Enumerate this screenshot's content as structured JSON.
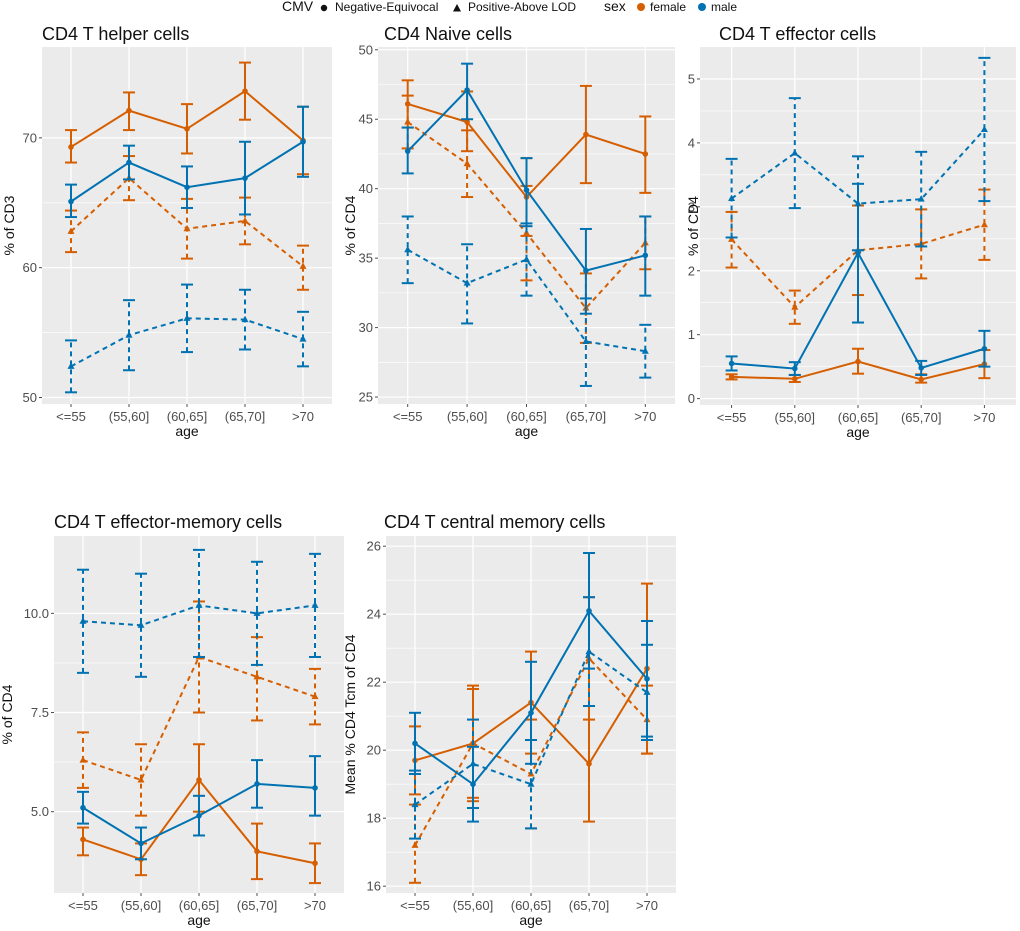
{
  "legend": {
    "cmv_title": "CMV",
    "cmv_items": [
      {
        "label": "Negative-Equivocal",
        "shape": "circle",
        "line": "solid"
      },
      {
        "label": "Positive-Above LOD",
        "shape": "triangle",
        "line": "dashed"
      }
    ],
    "sex_title": "sex",
    "sex_items": [
      {
        "label": "female",
        "color": "#D55E00"
      },
      {
        "label": "male",
        "color": "#0072B2"
      }
    ]
  },
  "chart_data": [
    {
      "type": "line",
      "title": "CD4 T helper cells",
      "xlabel": "age",
      "ylabel": "% of CD3",
      "categories": [
        "<=55",
        "(55,60]",
        "(60,65]",
        "(65,70]",
        ">70"
      ],
      "ylim": [
        49.5,
        77
      ],
      "yticks": [
        50,
        60,
        70
      ],
      "series": [
        {
          "name": "female Negative-Equivocal",
          "sex": "female",
          "cmv": "Negative-Equivocal",
          "values": [
            69.3,
            72.1,
            70.7,
            73.6,
            69.8
          ],
          "lower": [
            68.1,
            70.6,
            68.8,
            71.4,
            67.2
          ],
          "upper": [
            70.6,
            73.5,
            72.6,
            75.8,
            72.4
          ]
        },
        {
          "name": "female Positive-Above LOD",
          "sex": "female",
          "cmv": "Positive-Above LOD",
          "values": [
            62.8,
            66.9,
            63.0,
            63.6,
            60.1
          ],
          "lower": [
            61.2,
            65.2,
            60.7,
            61.8,
            58.3
          ],
          "upper": [
            64.4,
            68.6,
            65.3,
            65.4,
            61.7
          ]
        },
        {
          "name": "male Negative-Equivocal",
          "sex": "male",
          "cmv": "Negative-Equivocal",
          "values": [
            65.1,
            68.1,
            66.2,
            66.9,
            69.7
          ],
          "lower": [
            63.9,
            66.8,
            64.6,
            64.1,
            67.0
          ],
          "upper": [
            66.4,
            69.4,
            67.8,
            69.7,
            72.4
          ]
        },
        {
          "name": "male Positive-Above LOD",
          "sex": "male",
          "cmv": "Positive-Above LOD",
          "values": [
            52.4,
            54.8,
            56.1,
            56.0,
            54.5
          ],
          "lower": [
            50.4,
            52.1,
            53.5,
            53.7,
            52.4
          ],
          "upper": [
            54.4,
            57.5,
            58.7,
            58.3,
            56.6
          ]
        }
      ]
    },
    {
      "type": "line",
      "title": "CD4 Naive cells",
      "xlabel": "age",
      "ylabel": "% of CD4",
      "categories": [
        "<=55",
        "(55,60]",
        "(60,65]",
        "(65,70]",
        ">70"
      ],
      "ylim": [
        24.5,
        50.2
      ],
      "yticks": [
        25,
        30,
        35,
        40,
        45,
        50
      ],
      "series": [
        {
          "name": "female Negative-Equivocal",
          "sex": "female",
          "cmv": "Negative-Equivocal",
          "values": [
            46.1,
            44.8,
            39.4,
            43.9,
            42.5
          ],
          "lower": [
            44.4,
            42.7,
            36.6,
            40.4,
            39.7
          ],
          "upper": [
            47.8,
            47.0,
            42.2,
            47.4,
            45.2
          ]
        },
        {
          "name": "female Positive-Above LOD",
          "sex": "female",
          "cmv": "Positive-Above LOD",
          "values": [
            44.8,
            41.8,
            36.8,
            31.4,
            36.1
          ],
          "lower": [
            42.9,
            39.4,
            33.4,
            28.9,
            34.2
          ],
          "upper": [
            46.7,
            44.2,
            40.2,
            33.9,
            38.0
          ]
        },
        {
          "name": "male Negative-Equivocal",
          "sex": "male",
          "cmv": "Negative-Equivocal",
          "values": [
            42.7,
            47.1,
            39.9,
            34.1,
            35.2
          ],
          "lower": [
            41.1,
            45.0,
            37.3,
            31.0,
            32.3
          ],
          "upper": [
            44.4,
            49.0,
            42.2,
            37.1,
            38.0
          ]
        },
        {
          "name": "male Positive-Above LOD",
          "sex": "male",
          "cmv": "Positive-Above LOD",
          "values": [
            35.6,
            33.2,
            34.9,
            29.0,
            28.3
          ],
          "lower": [
            33.2,
            30.3,
            32.3,
            25.8,
            26.4
          ],
          "upper": [
            38.0,
            36.0,
            37.5,
            32.1,
            30.2
          ]
        }
      ]
    },
    {
      "type": "line",
      "title": "CD4 T effector cells",
      "xlabel": "age",
      "ylabel": "% of CD4",
      "categories": [
        "<=55",
        "(55,60]",
        "(60,65]",
        "(65,70]",
        ">70"
      ],
      "ylim": [
        -0.1,
        5.5
      ],
      "yticks": [
        0,
        1,
        2,
        3,
        4,
        5
      ],
      "series": [
        {
          "name": "female Negative-Equivocal",
          "sex": "female",
          "cmv": "Negative-Equivocal",
          "values": [
            0.34,
            0.31,
            0.58,
            0.3,
            0.54
          ],
          "lower": [
            0.3,
            0.26,
            0.39,
            0.25,
            0.32
          ],
          "upper": [
            0.38,
            0.37,
            0.78,
            0.38,
            0.76
          ]
        },
        {
          "name": "female Positive-Above LOD",
          "sex": "female",
          "cmv": "Positive-Above LOD",
          "values": [
            2.49,
            1.43,
            2.32,
            2.42,
            2.72
          ],
          "lower": [
            2.05,
            1.17,
            1.62,
            1.88,
            2.17
          ],
          "upper": [
            2.92,
            1.69,
            3.02,
            2.96,
            3.27
          ]
        },
        {
          "name": "male Negative-Equivocal",
          "sex": "male",
          "cmv": "Negative-Equivocal",
          "values": [
            0.55,
            0.47,
            2.28,
            0.48,
            0.78
          ],
          "lower": [
            0.44,
            0.37,
            1.19,
            0.37,
            0.5
          ],
          "upper": [
            0.66,
            0.57,
            3.36,
            0.59,
            1.06
          ]
        },
        {
          "name": "male Positive-Above LOD",
          "sex": "male",
          "cmv": "Positive-Above LOD",
          "values": [
            3.13,
            3.84,
            3.05,
            3.12,
            4.21
          ],
          "lower": [
            2.52,
            2.98,
            2.32,
            2.38,
            3.09
          ],
          "upper": [
            3.75,
            4.7,
            3.79,
            3.86,
            5.33
          ]
        }
      ]
    },
    {
      "type": "line",
      "title": "CD4 T effector-memory cells",
      "xlabel": "age",
      "ylabel": "% of CD4",
      "categories": [
        "<=55",
        "(55,60]",
        "(60,65]",
        "(65,70]",
        ">70"
      ],
      "ylim": [
        2.95,
        11.95
      ],
      "yticks": [
        5.0,
        7.5,
        10.0
      ],
      "ytick_labels": [
        "5.0",
        "7.5",
        "10.0"
      ],
      "series": [
        {
          "name": "female Negative-Equivocal",
          "sex": "female",
          "cmv": "Negative-Equivocal",
          "values": [
            4.3,
            3.8,
            5.8,
            4.0,
            3.7
          ],
          "lower": [
            3.9,
            3.4,
            5.0,
            3.3,
            3.2
          ],
          "upper": [
            4.6,
            4.2,
            6.7,
            4.7,
            4.2
          ]
        },
        {
          "name": "female Positive-Above LOD",
          "sex": "female",
          "cmv": "Positive-Above LOD",
          "values": [
            6.3,
            5.8,
            8.9,
            8.4,
            7.9
          ],
          "lower": [
            5.6,
            4.9,
            7.5,
            7.3,
            7.2
          ],
          "upper": [
            7.0,
            6.7,
            10.3,
            9.4,
            8.6
          ]
        },
        {
          "name": "male Negative-Equivocal",
          "sex": "male",
          "cmv": "Negative-Equivocal",
          "values": [
            5.1,
            4.2,
            4.9,
            5.7,
            5.6
          ],
          "lower": [
            4.7,
            3.8,
            4.4,
            5.1,
            4.9
          ],
          "upper": [
            5.5,
            4.6,
            5.4,
            6.3,
            6.4
          ]
        },
        {
          "name": "male Positive-Above LOD",
          "sex": "male",
          "cmv": "Positive-Above LOD",
          "values": [
            9.8,
            9.7,
            10.2,
            10.0,
            10.2
          ],
          "lower": [
            8.5,
            8.4,
            8.9,
            8.7,
            8.9
          ],
          "upper": [
            11.1,
            11.0,
            11.6,
            11.3,
            11.5
          ]
        }
      ]
    },
    {
      "type": "line",
      "title": "CD4 T central memory cells",
      "xlabel": "age",
      "ylabel": "Mean % CD4 Tcm of CD4",
      "categories": [
        "<=55",
        "(55,60]",
        "(60,65]",
        "(65,70]",
        ">70"
      ],
      "ylim": [
        15.8,
        26.3
      ],
      "yticks": [
        16,
        18,
        20,
        22,
        24,
        26
      ],
      "series": [
        {
          "name": "female Negative-Equivocal",
          "sex": "female",
          "cmv": "Negative-Equivocal",
          "values": [
            19.7,
            20.2,
            21.4,
            19.6,
            22.4
          ],
          "lower": [
            18.7,
            18.5,
            19.9,
            17.9,
            19.9
          ],
          "upper": [
            20.7,
            21.8,
            22.9,
            21.3,
            24.9
          ]
        },
        {
          "name": "female Positive-Above LOD",
          "sex": "female",
          "cmv": "Positive-Above LOD",
          "values": [
            17.2,
            20.2,
            19.3,
            22.7,
            20.9
          ],
          "lower": [
            16.1,
            18.6,
            17.7,
            20.9,
            19.9
          ],
          "upper": [
            18.4,
            21.9,
            20.9,
            24.5,
            21.9
          ]
        },
        {
          "name": "male Negative-Equivocal",
          "sex": "male",
          "cmv": "Negative-Equivocal",
          "values": [
            20.2,
            19.0,
            21.1,
            24.1,
            22.1
          ],
          "lower": [
            19.3,
            17.9,
            19.6,
            22.4,
            20.4
          ],
          "upper": [
            21.1,
            20.1,
            22.6,
            25.8,
            23.8
          ]
        },
        {
          "name": "male Positive-Above LOD",
          "sex": "male",
          "cmv": "Positive-Above LOD",
          "values": [
            18.4,
            19.6,
            19.0,
            22.9,
            21.7
          ],
          "lower": [
            17.4,
            18.3,
            17.7,
            21.3,
            20.3
          ],
          "upper": [
            19.4,
            20.9,
            20.3,
            24.5,
            23.1
          ]
        }
      ]
    }
  ]
}
